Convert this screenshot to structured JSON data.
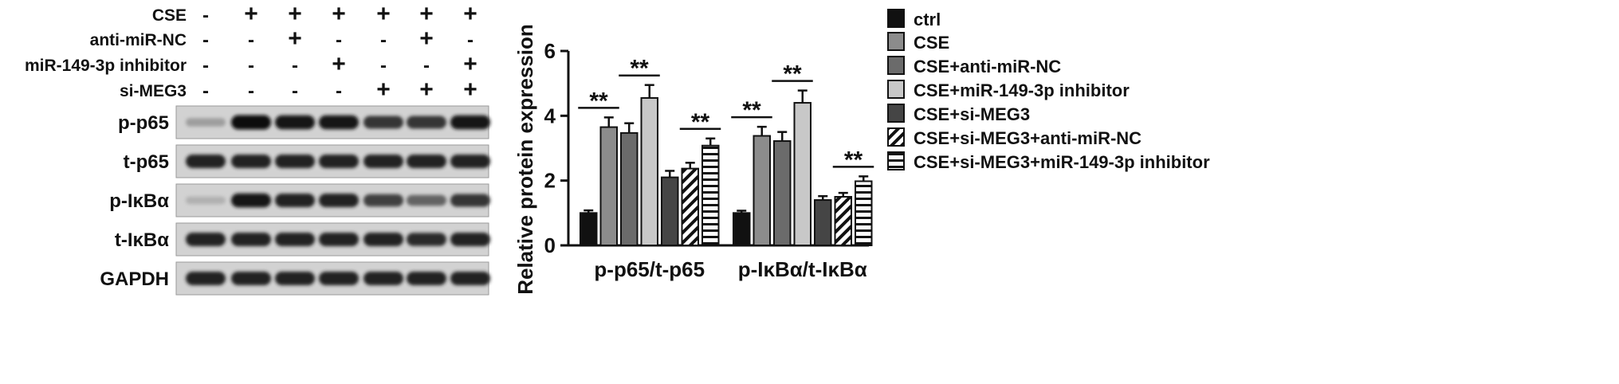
{
  "blot": {
    "conditions": [
      {
        "label": "CSE",
        "signs": [
          "-",
          "+",
          "+",
          "+",
          "+",
          "+",
          "+"
        ]
      },
      {
        "label": "anti-miR-NC",
        "signs": [
          "-",
          "-",
          "+",
          "-",
          "-",
          "+",
          "-"
        ]
      },
      {
        "label": "miR-149-3p inhibitor",
        "signs": [
          "-",
          "-",
          "-",
          "+",
          "-",
          "-",
          "+"
        ]
      },
      {
        "label": "si-MEG3",
        "signs": [
          "-",
          "-",
          "-",
          "-",
          "+",
          "+",
          "+"
        ]
      }
    ],
    "bands": [
      {
        "label": "p-p65",
        "intensity": [
          0.25,
          1.0,
          0.95,
          0.95,
          0.8,
          0.8,
          0.95
        ]
      },
      {
        "label": "t-p65",
        "intensity": [
          0.9,
          0.9,
          0.9,
          0.9,
          0.9,
          0.9,
          0.9
        ]
      },
      {
        "label": "p-IκBα",
        "intensity": [
          0.15,
          0.95,
          0.9,
          0.9,
          0.75,
          0.55,
          0.8
        ]
      },
      {
        "label": "t-IκBα",
        "intensity": [
          0.9,
          0.9,
          0.9,
          0.9,
          0.9,
          0.85,
          0.9
        ]
      },
      {
        "label": "GAPDH",
        "intensity": [
          0.9,
          0.9,
          0.9,
          0.9,
          0.9,
          0.9,
          0.9
        ]
      }
    ]
  },
  "chart_data": {
    "type": "bar",
    "ylabel": "Relative protein expression",
    "xlabel": "",
    "ylim": [
      0,
      6
    ],
    "yticks": [
      "0",
      "2",
      "4",
      "6"
    ],
    "categories": [
      "p-p65/t-p65",
      "p-IκBα/t-IκBα"
    ],
    "series": [
      {
        "name": "ctrl",
        "values": [
          1.0,
          1.0
        ],
        "errors": [
          0.08,
          0.07
        ],
        "fill": "#111111",
        "pattern": "solid"
      },
      {
        "name": "CSE",
        "values": [
          3.65,
          3.38
        ],
        "errors": [
          0.3,
          0.28
        ],
        "fill": "#8c8c8c",
        "pattern": "solid"
      },
      {
        "name": "CSE+anti-miR-NC",
        "values": [
          3.47,
          3.22
        ],
        "errors": [
          0.3,
          0.28
        ],
        "fill": "#6b6b6b",
        "pattern": "solid"
      },
      {
        "name": "CSE+miR-149-3p inhibitor",
        "values": [
          4.55,
          4.4
        ],
        "errors": [
          0.4,
          0.38
        ],
        "fill": "#c8c8c8",
        "pattern": "solid"
      },
      {
        "name": "CSE+si-MEG3",
        "values": [
          2.1,
          1.4
        ],
        "errors": [
          0.2,
          0.12
        ],
        "fill": "#454545",
        "pattern": "solid"
      },
      {
        "name": "CSE+si-MEG3+anti-miR-NC",
        "values": [
          2.37,
          1.5
        ],
        "errors": [
          0.18,
          0.12
        ],
        "fill": "#ffffff",
        "pattern": "diagonal"
      },
      {
        "name": "CSE+si-MEG3+miR-149-3p inhibitor",
        "values": [
          3.08,
          1.98
        ],
        "errors": [
          0.22,
          0.15
        ],
        "fill": "#ffffff",
        "pattern": "horizontal"
      }
    ],
    "significance": [
      {
        "category": 0,
        "from": 0,
        "to": 1,
        "label": "**"
      },
      {
        "category": 0,
        "from": 2,
        "to": 3,
        "label": "**"
      },
      {
        "category": 0,
        "from": 5,
        "to": 6,
        "label": "**"
      },
      {
        "category": 1,
        "from": 0,
        "to": 1,
        "label": "**"
      },
      {
        "category": 1,
        "from": 2,
        "to": 3,
        "label": "**"
      },
      {
        "category": 1,
        "from": 5,
        "to": 6,
        "label": "**"
      }
    ],
    "legend_position": "right",
    "grid": false
  }
}
